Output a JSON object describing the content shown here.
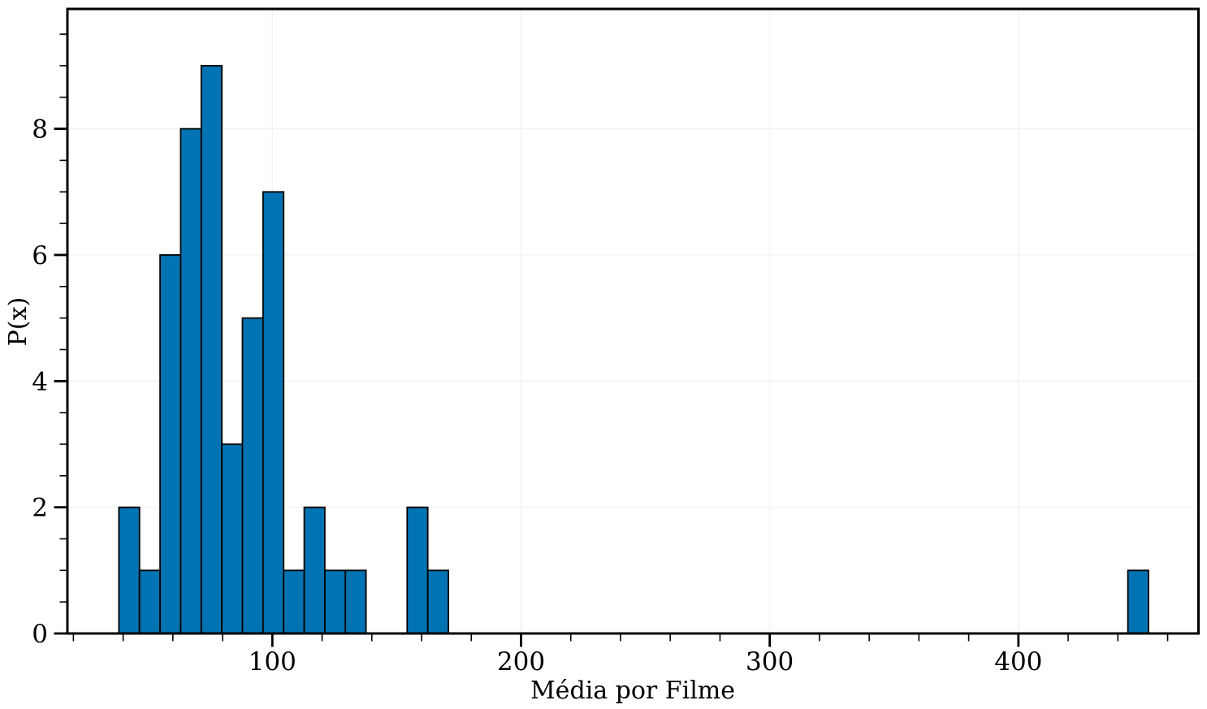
{
  "chart_data": {
    "type": "bar",
    "subtype": "histogram",
    "title": "",
    "xlabel": "Média por Filme",
    "ylabel": "P(x)",
    "bin_start": 38.3,
    "bin_width": 8.28,
    "counts": [
      2,
      1,
      6,
      8,
      9,
      3,
      5,
      7,
      1,
      2,
      1,
      1,
      0,
      0,
      2,
      1,
      0,
      0,
      0,
      0,
      0,
      0,
      0,
      0,
      0,
      0,
      0,
      0,
      0,
      0,
      0,
      0,
      0,
      0,
      0,
      0,
      0,
      0,
      0,
      0,
      0,
      0,
      0,
      0,
      0,
      0,
      0,
      0,
      0,
      1
    ],
    "xlim": [
      17.6,
      472.4
    ],
    "ylim": [
      0,
      9.9
    ],
    "x_major_ticks": [
      100,
      200,
      300,
      400
    ],
    "x_minor_step": 20,
    "y_major_ticks": [
      0,
      2,
      4,
      6,
      8
    ],
    "y_minor_step": 0.5,
    "grid": true,
    "legend": null,
    "colors": {
      "bar_fill": "#0173b2",
      "bar_edge": "#000000",
      "grid_line": "#f2f2f2",
      "axis": "#000000",
      "background": "#ffffff"
    }
  }
}
